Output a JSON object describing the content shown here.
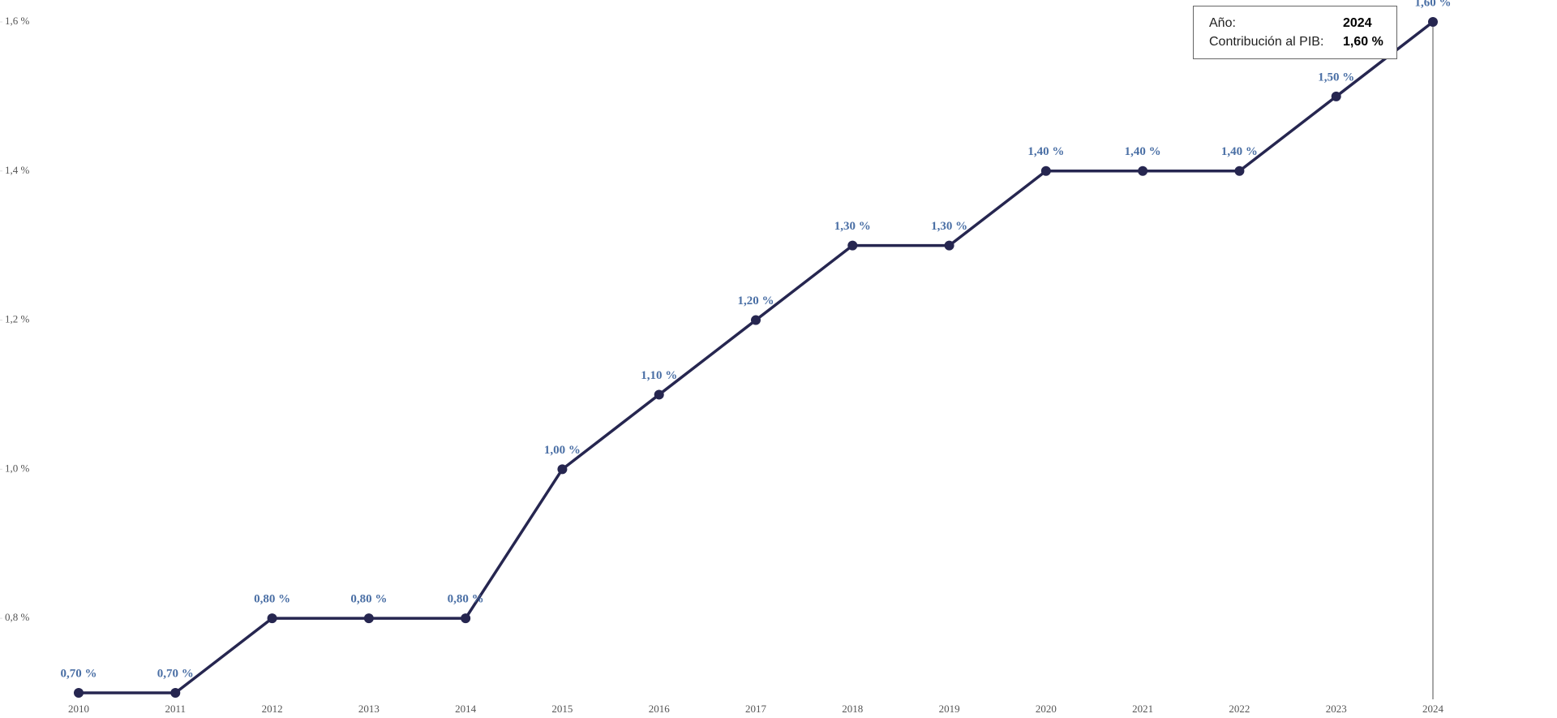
{
  "chart_data": {
    "type": "line",
    "categories": [
      "2010",
      "2011",
      "2012",
      "2013",
      "2014",
      "2015",
      "2016",
      "2017",
      "2018",
      "2019",
      "2020",
      "2021",
      "2022",
      "2023",
      "2024"
    ],
    "values": [
      0.7,
      0.7,
      0.8,
      0.8,
      0.8,
      1.0,
      1.1,
      1.2,
      1.3,
      1.3,
      1.4,
      1.4,
      1.4,
      1.5,
      1.6
    ],
    "value_labels": [
      "0,70 %",
      "0,70 %",
      "0,80 %",
      "0,80 %",
      "0,80 %",
      "1,00 %",
      "1,10 %",
      "1,20 %",
      "1,30 %",
      "1,30 %",
      "1,40 %",
      "1,40 %",
      "1,40 %",
      "1,50 %",
      "1,60 %"
    ],
    "color": "#262650",
    "ylim": [
      0.7,
      1.6
    ],
    "yticks": [
      {
        "value": 0.8,
        "label": "0,8 %"
      },
      {
        "value": 1.0,
        "label": "1,0 %"
      },
      {
        "value": 1.2,
        "label": "1,2 %"
      },
      {
        "value": 1.4,
        "label": "1,4 %"
      },
      {
        "value": 1.6,
        "label": "1,6 %"
      }
    ],
    "tooltip": {
      "rows": [
        {
          "label": "Año:",
          "value": "2024"
        },
        {
          "label": "Contribución al PIB:",
          "value": "1,60 %"
        }
      ]
    }
  }
}
